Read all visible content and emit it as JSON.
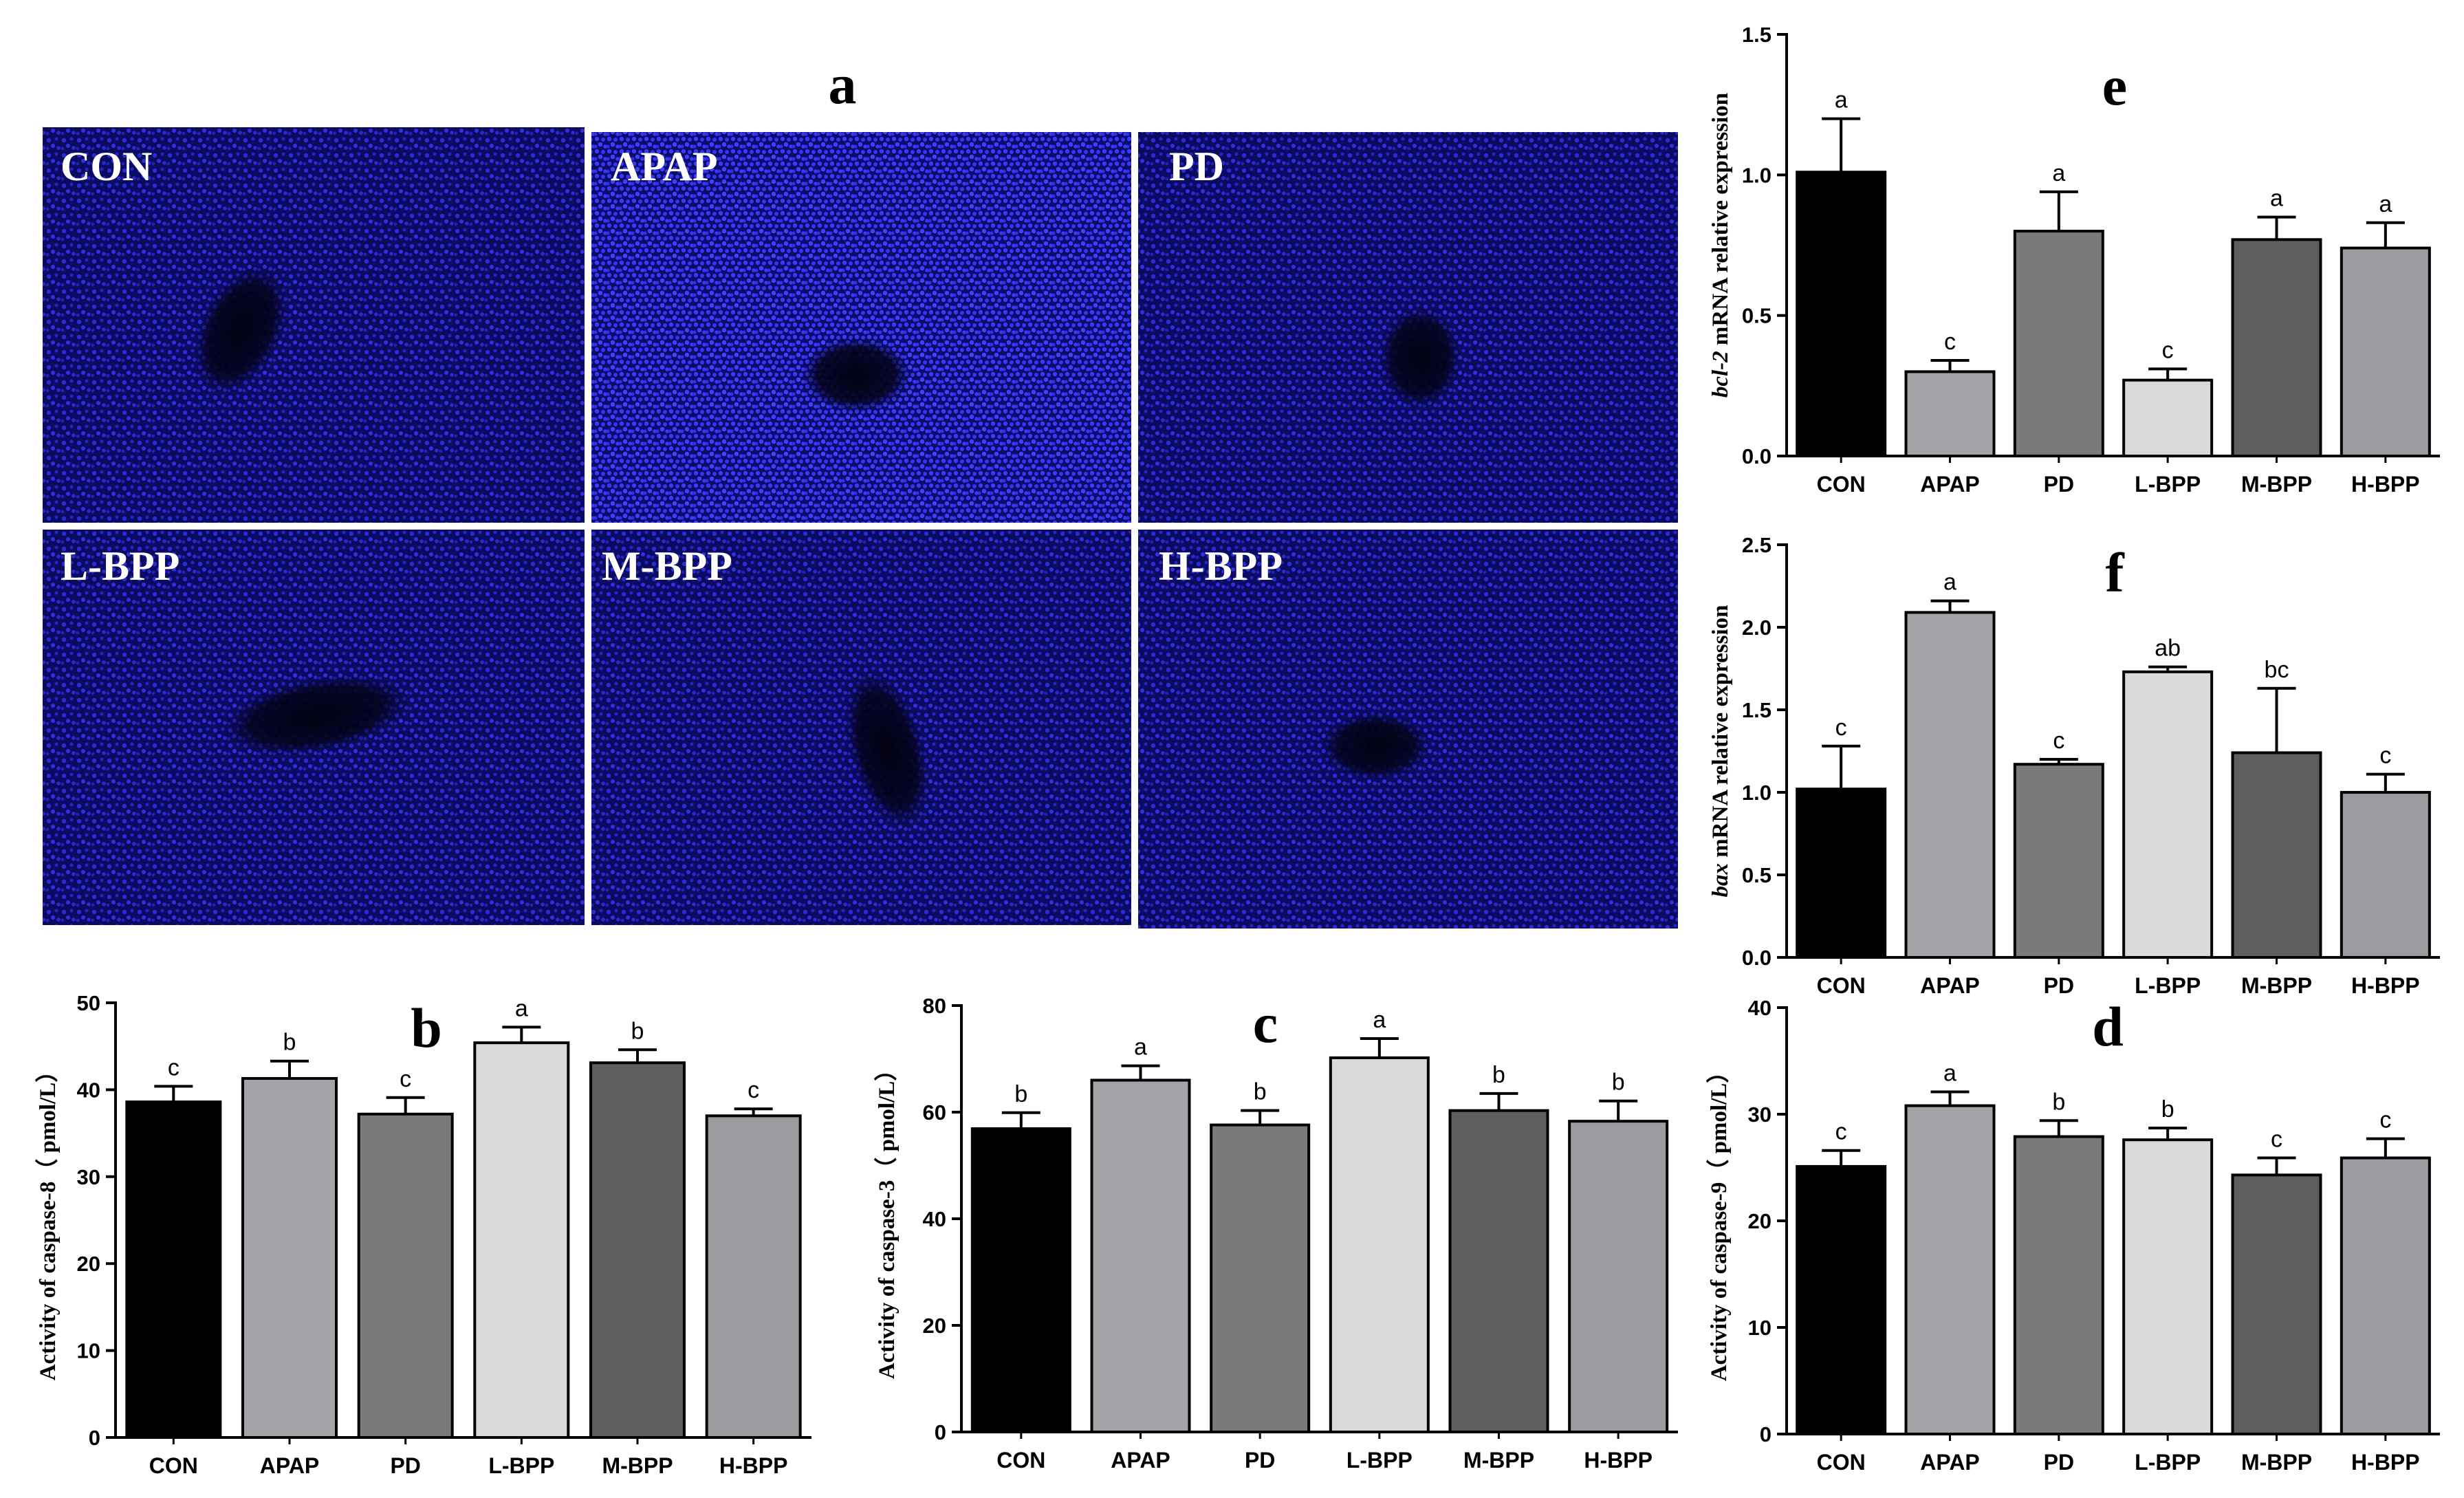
{
  "panel_a": {
    "letter": "a",
    "tiles": [
      {
        "label": "CON"
      },
      {
        "label": "APAP"
      },
      {
        "label": "PD"
      },
      {
        "label": "L-BPP"
      },
      {
        "label": "M-BPP"
      },
      {
        "label": "H-BPP"
      }
    ]
  },
  "colors": {
    "bars": [
      "#000000",
      "#a4a4a8",
      "#7a7a7a",
      "#d9d9d9",
      "#5e5e5e",
      "#9c9ca0"
    ],
    "tile_bg": "#0a0a5e",
    "nuclei": "#2a2aff"
  },
  "chart_data": [
    {
      "id": "b",
      "letter": "b",
      "type": "bar",
      "categories": [
        "CON",
        "APAP",
        "PD",
        "L-BPP",
        "M-BPP",
        "H-BPP"
      ],
      "values": [
        38.6,
        41.3,
        37.2,
        45.4,
        43.1,
        37.0
      ],
      "errors": [
        1.8,
        2.0,
        1.9,
        1.8,
        1.5,
        0.8
      ],
      "sig": [
        "c",
        "b",
        "c",
        "a",
        "b",
        "c"
      ],
      "ylabel": "Activity of caspase-8（ pmol/L）",
      "ylim": [
        0,
        50
      ],
      "yticks": [
        "0",
        "10",
        "20",
        "30",
        "40",
        "50"
      ]
    },
    {
      "id": "c",
      "letter": "c",
      "type": "bar",
      "categories": [
        "CON",
        "APAP",
        "PD",
        "L-BPP",
        "M-BPP",
        "H-BPP"
      ],
      "values": [
        56.9,
        66.0,
        57.6,
        70.2,
        60.3,
        58.3
      ],
      "errors": [
        3.0,
        2.7,
        2.7,
        3.6,
        3.2,
        3.8
      ],
      "sig": [
        "b",
        "a",
        "b",
        "a",
        "b",
        "b"
      ],
      "ylabel": "Activity of caspase-3（ pmol/L）",
      "ylim": [
        0,
        80
      ],
      "yticks": [
        "0",
        "20",
        "40",
        "60",
        "80"
      ]
    },
    {
      "id": "d",
      "letter": "d",
      "type": "bar",
      "categories": [
        "CON",
        "APAP",
        "PD",
        "L-BPP",
        "M-BPP",
        "H-BPP"
      ],
      "values": [
        25.1,
        30.8,
        27.9,
        27.6,
        24.3,
        25.9
      ],
      "errors": [
        1.5,
        1.3,
        1.5,
        1.1,
        1.6,
        1.8
      ],
      "sig": [
        "c",
        "a",
        "b",
        "b",
        "c",
        "c"
      ],
      "ylabel": "Activity of caspase-9（ pmol/L）",
      "ylim": [
        0,
        40
      ],
      "yticks": [
        "0",
        "10",
        "20",
        "30",
        "40"
      ]
    },
    {
      "id": "e",
      "letter": "e",
      "type": "bar",
      "categories": [
        "CON",
        "APAP",
        "PD",
        "L-BPP",
        "M-BPP",
        "H-BPP"
      ],
      "values": [
        1.01,
        0.3,
        0.8,
        0.27,
        0.77,
        0.74
      ],
      "errors": [
        0.19,
        0.04,
        0.14,
        0.04,
        0.08,
        0.09
      ],
      "sig": [
        "a",
        "c",
        "a",
        "c",
        "a",
        "a"
      ],
      "ylabel_italic": "bcl-2",
      "ylabel": " mRNA relative expression",
      "ylim": [
        0,
        1.5
      ],
      "yticks": [
        "0.0",
        "0.5",
        "1.0",
        "1.5"
      ]
    },
    {
      "id": "f",
      "letter": "f",
      "type": "bar",
      "categories": [
        "CON",
        "APAP",
        "PD",
        "L-BPP",
        "M-BPP",
        "H-BPP"
      ],
      "values": [
        1.02,
        2.09,
        1.17,
        1.73,
        1.24,
        1.0
      ],
      "errors": [
        0.26,
        0.07,
        0.03,
        0.03,
        0.39,
        0.11
      ],
      "sig": [
        "c",
        "a",
        "c",
        "ab",
        "bc",
        "c"
      ],
      "ylabel_italic": "bax",
      "ylabel": " mRNA relative expression",
      "ylim": [
        0,
        2.5
      ],
      "yticks": [
        "0.0",
        "0.5",
        "1.0",
        "1.5",
        "2.0",
        "2.5"
      ]
    }
  ]
}
